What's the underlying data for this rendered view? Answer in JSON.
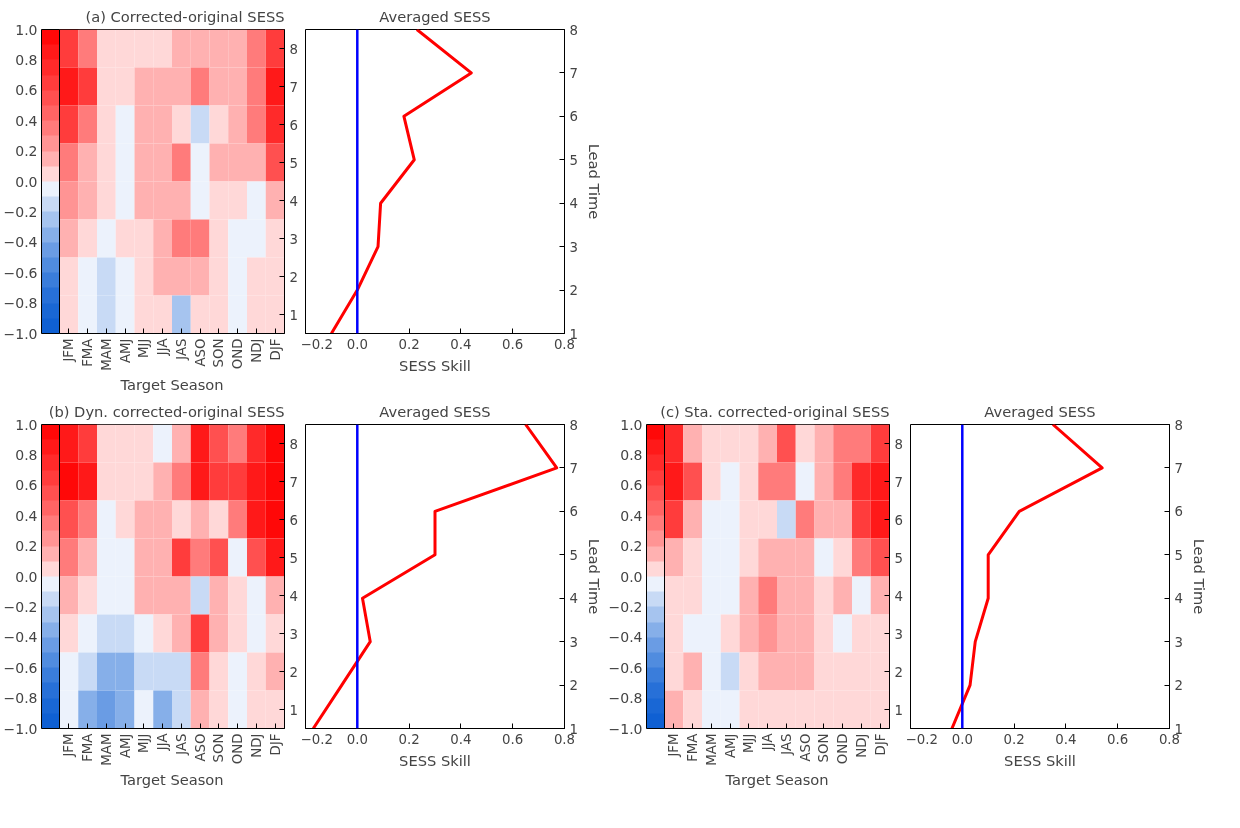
{
  "chart_data": [
    {
      "type": "heatmap",
      "title": "(a) Corrected-original SESS",
      "xlabel": "Target Season",
      "categories": [
        "JFM",
        "FMA",
        "MAM",
        "AMJ",
        "MJJ",
        "JJA",
        "JAS",
        "ASO",
        "SON",
        "OND",
        "NDJ",
        "DJF"
      ],
      "y_categories": [
        "8",
        "7",
        "6",
        "5",
        "4",
        "3",
        "2",
        "1"
      ],
      "cells": [
        [
          0.6,
          0.3,
          0.05,
          0.05,
          0.05,
          0.0,
          0.1,
          0.2,
          0.2,
          0.2,
          0.3,
          0.6
        ],
        [
          0.9,
          0.6,
          0.05,
          0.05,
          0.1,
          0.1,
          0.15,
          0.3,
          0.2,
          0.2,
          0.3,
          0.9
        ],
        [
          0.6,
          0.3,
          0.0,
          -0.05,
          0.1,
          0.1,
          0.0,
          -0.15,
          0.0,
          0.1,
          0.3,
          0.7
        ],
        [
          0.4,
          0.2,
          0.0,
          -0.05,
          0.1,
          0.1,
          0.3,
          -0.05,
          0.2,
          0.1,
          0.2,
          0.5
        ],
        [
          0.25,
          0.1,
          0.0,
          -0.05,
          0.15,
          0.1,
          0.1,
          -0.05,
          0.0,
          0.05,
          -0.05,
          0.15
        ],
        [
          0.1,
          0.0,
          -0.05,
          0.0,
          0.05,
          0.15,
          0.35,
          0.3,
          0.05,
          -0.05,
          -0.05,
          0.05
        ],
        [
          0.05,
          -0.05,
          -0.2,
          -0.1,
          0.05,
          0.1,
          0.15,
          0.15,
          0.05,
          -0.05,
          0.0,
          0.05
        ],
        [
          0.0,
          -0.1,
          -0.2,
          -0.05,
          0.05,
          0.0,
          -0.25,
          0.05,
          0.05,
          -0.05,
          0.0,
          0.0
        ]
      ],
      "clim": [
        -1,
        1
      ],
      "cticks": [
        {
          "value": -1,
          "label": "−1.0"
        },
        {
          "value": -0.8,
          "label": "−0.8"
        },
        {
          "value": -0.6,
          "label": "−0.6"
        },
        {
          "value": -0.4,
          "label": "−0.4"
        },
        {
          "value": -0.2,
          "label": "−0.2"
        },
        {
          "value": 0,
          "label": "0.0"
        },
        {
          "value": 0.2,
          "label": "0.2"
        },
        {
          "value": 0.4,
          "label": "0.4"
        },
        {
          "value": 0.6,
          "label": "0.6"
        },
        {
          "value": 0.8,
          "label": "0.8"
        },
        {
          "value": 1,
          "label": "1.0"
        }
      ]
    },
    {
      "type": "line",
      "title": "Averaged SESS",
      "xlabel": "SESS Skill",
      "ylabel": "Lead Time",
      "xlim": [
        -0.2,
        0.8
      ],
      "xticks": [
        {
          "value": -0.2,
          "label": "−0.2"
        },
        {
          "value": 0,
          "label": "0.0"
        },
        {
          "value": 0.2,
          "label": "0.2"
        },
        {
          "value": 0.4,
          "label": "0.4"
        },
        {
          "value": 0.6,
          "label": "0.6"
        },
        {
          "value": 0.8,
          "label": "0.8"
        }
      ],
      "ylim": [
        1,
        8
      ],
      "yticks": [
        1,
        2,
        3,
        4,
        5,
        6,
        7,
        8
      ],
      "series": [
        {
          "color": "#ff0000",
          "x": [
            -0.1,
            0.0,
            0.08,
            0.09,
            0.22,
            0.18,
            0.44,
            0.23
          ],
          "values": [
            1,
            2,
            3,
            4,
            5,
            6,
            7,
            8
          ]
        }
      ],
      "ref_lines": [
        {
          "axis": "x",
          "value": 0,
          "color": "#0000ff"
        }
      ]
    },
    {
      "type": "heatmap",
      "title": "(b) Dyn. corrected-original SESS",
      "xlabel": "Target Season",
      "categories": [
        "JFM",
        "FMA",
        "MAM",
        "AMJ",
        "MJJ",
        "JJA",
        "JAS",
        "ASO",
        "SON",
        "OND",
        "NDJ",
        "DJF"
      ],
      "y_categories": [
        "8",
        "7",
        "6",
        "5",
        "4",
        "3",
        "2",
        "1"
      ],
      "cells": [
        [
          0.9,
          0.6,
          0.0,
          0.05,
          0.05,
          -0.1,
          0.2,
          0.8,
          0.5,
          0.4,
          0.7,
          1.0
        ],
        [
          1.0,
          0.8,
          0.05,
          0.05,
          0.05,
          0.2,
          0.4,
          0.9,
          0.6,
          0.6,
          0.9,
          1.0
        ],
        [
          0.5,
          0.3,
          -0.05,
          0.0,
          0.2,
          0.15,
          0.0,
          0.2,
          0.0,
          0.3,
          0.8,
          1.0
        ],
        [
          0.3,
          0.1,
          -0.05,
          -0.05,
          0.1,
          0.2,
          0.6,
          0.3,
          0.5,
          -0.05,
          0.5,
          0.9
        ],
        [
          0.15,
          0.0,
          -0.05,
          -0.05,
          0.1,
          0.15,
          0.1,
          -0.2,
          0.1,
          0.05,
          -0.1,
          0.1
        ],
        [
          0.0,
          -0.05,
          -0.2,
          -0.2,
          -0.1,
          0.0,
          0.2,
          0.6,
          0.1,
          0.0,
          -0.05,
          0.05
        ],
        [
          -0.05,
          -0.2,
          -0.3,
          -0.3,
          -0.2,
          -0.2,
          -0.2,
          0.3,
          0.05,
          -0.05,
          0.0,
          0.1
        ],
        [
          -0.1,
          -0.3,
          -0.4,
          -0.3,
          -0.05,
          -0.3,
          -0.2,
          0.1,
          0.05,
          -0.05,
          0.0,
          0.05
        ]
      ],
      "clim": [
        -1,
        1
      ],
      "cticks": [
        {
          "value": -1,
          "label": "−1.0"
        },
        {
          "value": -0.8,
          "label": "−0.8"
        },
        {
          "value": -0.6,
          "label": "−0.6"
        },
        {
          "value": -0.4,
          "label": "−0.4"
        },
        {
          "value": -0.2,
          "label": "−0.2"
        },
        {
          "value": 0,
          "label": "0.0"
        },
        {
          "value": 0.2,
          "label": "0.2"
        },
        {
          "value": 0.4,
          "label": "0.4"
        },
        {
          "value": 0.6,
          "label": "0.6"
        },
        {
          "value": 0.8,
          "label": "0.8"
        },
        {
          "value": 1,
          "label": "1.0"
        }
      ]
    },
    {
      "type": "line",
      "title": "Averaged SESS",
      "xlabel": "SESS Skill",
      "ylabel": "Lead Time",
      "xlim": [
        -0.2,
        0.8
      ],
      "xticks": [
        {
          "value": -0.2,
          "label": "−0.2"
        },
        {
          "value": 0,
          "label": "0.0"
        },
        {
          "value": 0.2,
          "label": "0.2"
        },
        {
          "value": 0.4,
          "label": "0.4"
        },
        {
          "value": 0.6,
          "label": "0.6"
        },
        {
          "value": 0.8,
          "label": "0.8"
        }
      ],
      "ylim": [
        1,
        8
      ],
      "yticks": [
        1,
        2,
        3,
        4,
        5,
        6,
        7,
        8
      ],
      "series": [
        {
          "color": "#ff0000",
          "x": [
            -0.17,
            -0.06,
            0.05,
            0.02,
            0.3,
            0.3,
            0.77,
            0.65
          ],
          "values": [
            1,
            2,
            3,
            4,
            5,
            6,
            7,
            8
          ]
        }
      ],
      "ref_lines": [
        {
          "axis": "x",
          "value": 0,
          "color": "#0000ff"
        }
      ]
    },
    {
      "type": "heatmap",
      "title": "(c) Sta. corrected-original SESS",
      "xlabel": "Target Season",
      "categories": [
        "JFM",
        "FMA",
        "MAM",
        "AMJ",
        "MJJ",
        "JJA",
        "JAS",
        "ASO",
        "SON",
        "OND",
        "NDJ",
        "DJF"
      ],
      "y_categories": [
        "8",
        "7",
        "6",
        "5",
        "4",
        "3",
        "2",
        "1"
      ],
      "cells": [
        [
          0.7,
          0.15,
          0.05,
          0.0,
          0.0,
          0.1,
          0.5,
          0.0,
          0.1,
          0.3,
          0.4,
          0.6
        ],
        [
          0.9,
          0.5,
          0.0,
          -0.05,
          0.05,
          0.3,
          0.4,
          -0.1,
          0.1,
          0.3,
          0.7,
          0.9
        ],
        [
          0.6,
          0.2,
          -0.05,
          -0.05,
          0.05,
          0.05,
          -0.2,
          0.3,
          0.1,
          0.2,
          0.6,
          0.9
        ],
        [
          0.2,
          0.05,
          -0.05,
          -0.05,
          0.05,
          0.2,
          0.2,
          0.1,
          -0.05,
          0.05,
          0.3,
          0.5
        ],
        [
          0.05,
          0.0,
          -0.05,
          -0.05,
          0.2,
          0.4,
          0.1,
          0.1,
          0.05,
          0.2,
          -0.05,
          0.15
        ],
        [
          0.0,
          -0.05,
          -0.05,
          0.0,
          0.1,
          0.25,
          0.1,
          0.2,
          0.05,
          -0.05,
          0.05,
          0.05
        ],
        [
          0.05,
          0.15,
          -0.1,
          -0.15,
          0.05,
          0.2,
          0.1,
          0.1,
          0.0,
          0.0,
          0.0,
          0.05
        ],
        [
          0.1,
          0.0,
          -0.1,
          -0.05,
          0.0,
          0.0,
          0.0,
          0.0,
          0.0,
          0.0,
          0.05,
          0.05
        ]
      ],
      "clim": [
        -1,
        1
      ],
      "cticks": [
        {
          "value": -1,
          "label": "−1.0"
        },
        {
          "value": -0.8,
          "label": "−0.8"
        },
        {
          "value": -0.6,
          "label": "−0.6"
        },
        {
          "value": -0.4,
          "label": "−0.4"
        },
        {
          "value": -0.2,
          "label": "−0.2"
        },
        {
          "value": 0,
          "label": "0.0"
        },
        {
          "value": 0.2,
          "label": "0.2"
        },
        {
          "value": 0.4,
          "label": "0.4"
        },
        {
          "value": 0.6,
          "label": "0.6"
        },
        {
          "value": 0.8,
          "label": "0.8"
        },
        {
          "value": 1,
          "label": "1.0"
        }
      ]
    },
    {
      "type": "line",
      "title": "Averaged SESS",
      "xlabel": "SESS Skill",
      "ylabel": "Lead Time",
      "xlim": [
        -0.2,
        0.8
      ],
      "xticks": [
        {
          "value": -0.2,
          "label": "−0.2"
        },
        {
          "value": 0,
          "label": "0.0"
        },
        {
          "value": 0.2,
          "label": "0.2"
        },
        {
          "value": 0.4,
          "label": "0.4"
        },
        {
          "value": 0.6,
          "label": "0.6"
        },
        {
          "value": 0.8,
          "label": "0.8"
        }
      ],
      "ylim": [
        1,
        8
      ],
      "yticks": [
        1,
        2,
        3,
        4,
        5,
        6,
        7,
        8
      ],
      "series": [
        {
          "color": "#ff0000",
          "x": [
            -0.04,
            0.03,
            0.05,
            0.1,
            0.1,
            0.22,
            0.54,
            0.35
          ],
          "values": [
            1,
            2,
            3,
            4,
            5,
            6,
            7,
            8
          ]
        }
      ],
      "ref_lines": [
        {
          "axis": "x",
          "value": 0,
          "color": "#0000ff"
        }
      ]
    }
  ]
}
